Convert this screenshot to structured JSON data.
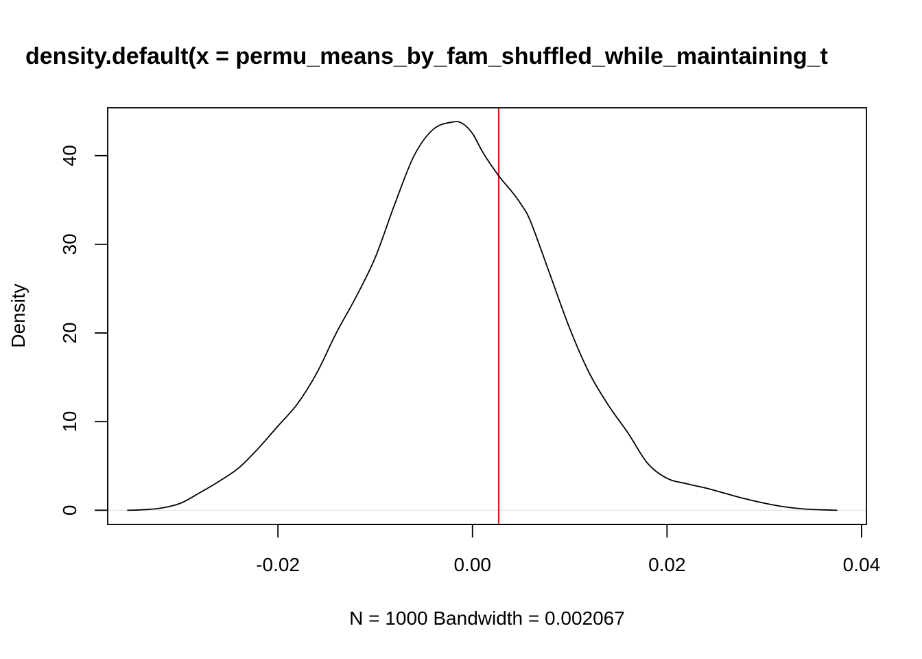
{
  "chart_data": {
    "type": "line",
    "title": "density.default(x = permu_means_by_fam_shuffled_while_maintaining_t",
    "xlabel": "N = 1000   Bandwidth = 0.002067",
    "ylabel": "Density",
    "xlim": [
      -0.0375,
      0.0405
    ],
    "ylim": [
      -1.6,
      45.4
    ],
    "x_ticks": [
      -0.02,
      0.0,
      0.02,
      0.04
    ],
    "x_tick_labels": [
      "-0.02",
      "0.00",
      "0.02",
      "0.04"
    ],
    "y_ticks": [
      0,
      10,
      20,
      30,
      40
    ],
    "y_tick_labels": [
      "0",
      "10",
      "20",
      "30",
      "40"
    ],
    "grid": false,
    "legend": "none",
    "baseline": {
      "y": 0,
      "color": "#e0e0e0"
    },
    "reference_line": {
      "x": 0.0027,
      "color": "#e31a1c"
    },
    "series": [
      {
        "color": "#000000",
        "x": [
          -0.0355,
          -0.034,
          -0.032,
          -0.03,
          -0.028,
          -0.026,
          -0.024,
          -0.022,
          -0.02,
          -0.018,
          -0.016,
          -0.014,
          -0.012,
          -0.01,
          -0.008,
          -0.006,
          -0.004,
          -0.002,
          -0.001,
          0.0,
          0.001,
          0.002,
          0.003,
          0.004,
          0.005,
          0.006,
          0.008,
          0.01,
          0.012,
          0.014,
          0.016,
          0.018,
          0.02,
          0.022,
          0.024,
          0.026,
          0.028,
          0.03,
          0.032,
          0.034,
          0.036,
          0.0375
        ],
        "y": [
          0.0,
          0.05,
          0.25,
          0.8,
          2.0,
          3.3,
          4.8,
          7.0,
          9.5,
          12.0,
          15.5,
          20.0,
          24.0,
          28.5,
          34.5,
          40.0,
          43.0,
          43.8,
          43.6,
          42.5,
          40.5,
          38.8,
          37.3,
          36.0,
          34.5,
          32.5,
          26.5,
          20.5,
          15.5,
          11.8,
          8.7,
          5.3,
          3.6,
          3.0,
          2.5,
          1.9,
          1.3,
          0.8,
          0.4,
          0.15,
          0.05,
          0.0
        ]
      }
    ]
  }
}
